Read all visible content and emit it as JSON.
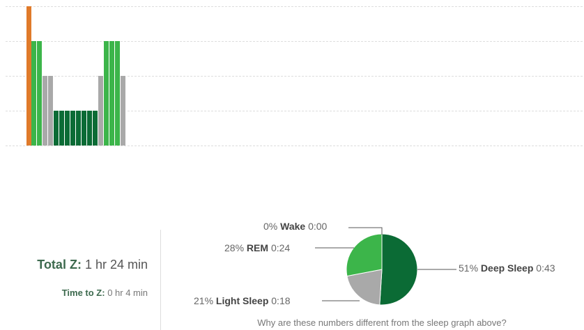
{
  "hypnogram": {
    "colors": {
      "wake": "#e07a2a",
      "rem": "#3cb54a",
      "light": "#a9a9a9",
      "deep": "#0b6b35",
      "grid": "#dddddd"
    },
    "levels": {
      "wake": 4,
      "rem": 3,
      "light": 2,
      "deep": 1
    },
    "segments": [
      "wake",
      "rem",
      "rem",
      "light",
      "light",
      "deep",
      "deep",
      "deep",
      "deep",
      "deep",
      "deep",
      "deep",
      "deep",
      "light",
      "rem",
      "rem",
      "rem",
      "light"
    ]
  },
  "summary": {
    "total_label": "Total Z:",
    "total_value": "1 hr 24 min",
    "time_label": "Time to Z:",
    "time_value": "0 hr 4 min"
  },
  "chart_data": {
    "type": "pie",
    "slices": [
      {
        "key": "deep",
        "percent": "51%",
        "name": "Deep Sleep",
        "time": "0:43",
        "value": 51,
        "color": "#0b6b35"
      },
      {
        "key": "light",
        "percent": "21%",
        "name": "Light Sleep",
        "time": "0:18",
        "value": 21,
        "color": "#a9a9a9"
      },
      {
        "key": "rem",
        "percent": "28%",
        "name": "REM",
        "time": "0:24",
        "value": 28,
        "color": "#3cb54a"
      },
      {
        "key": "wake",
        "percent": "0%",
        "name": "Wake",
        "time": "0:00",
        "value": 0,
        "color": "#e07a2a"
      }
    ]
  },
  "help": {
    "why_text": "Why are these numbers different from the sleep graph above?"
  }
}
